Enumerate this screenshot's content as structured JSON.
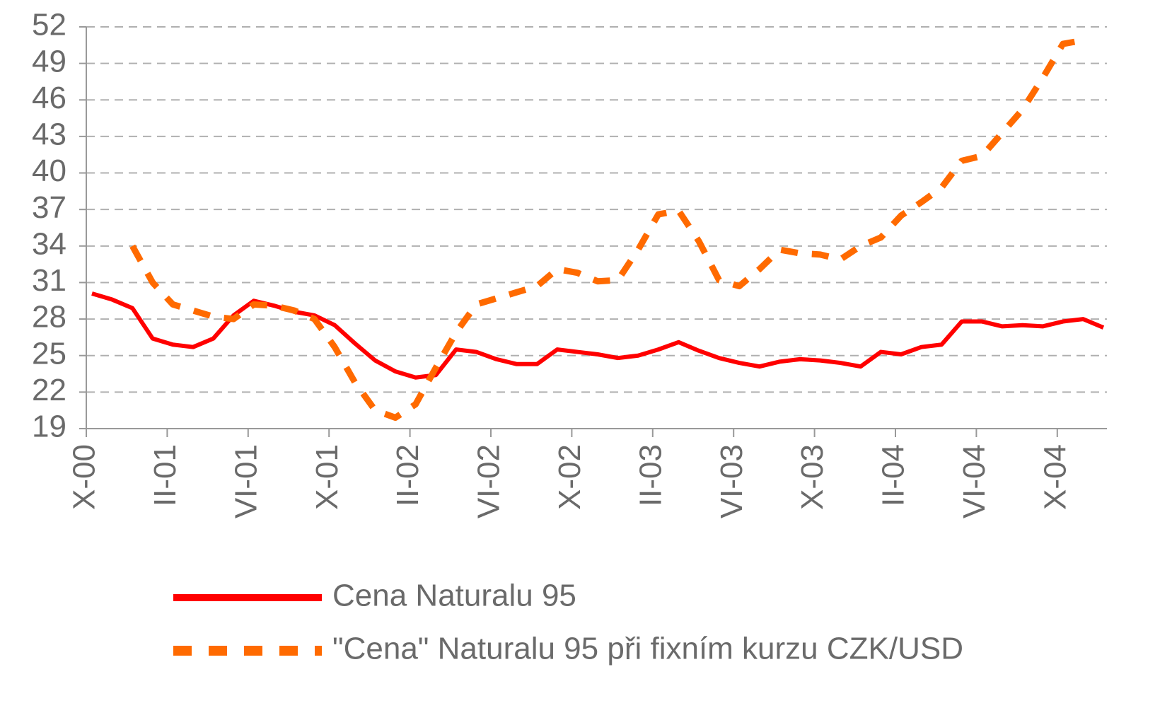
{
  "chart_data": {
    "type": "line",
    "categories": [
      "X-00",
      null,
      null,
      null,
      "II-01",
      null,
      null,
      null,
      "VI-01",
      null,
      null,
      null,
      "X-01",
      null,
      null,
      null,
      "II-02",
      null,
      null,
      null,
      "VI-02",
      null,
      null,
      null,
      "X-02",
      null,
      null,
      null,
      "II-03",
      null,
      null,
      null,
      "VI-03",
      null,
      null,
      null,
      "X-03",
      null,
      null,
      null,
      "II-04",
      null,
      null,
      null,
      "VI-04",
      null,
      null,
      null,
      "X-04",
      null,
      null
    ],
    "series": [
      {
        "name": "Cena Naturalu 95",
        "color": "#ff0000",
        "dashed": false,
        "values": [
          30.1,
          29.6,
          28.9,
          26.4,
          25.9,
          25.7,
          26.4,
          28.3,
          29.5,
          29.1,
          28.6,
          28.3,
          27.5,
          26.0,
          24.6,
          23.7,
          23.2,
          23.4,
          25.5,
          25.3,
          24.7,
          24.3,
          24.3,
          25.5,
          25.3,
          25.1,
          24.8,
          25.0,
          25.5,
          26.1,
          25.4,
          24.8,
          24.4,
          24.1,
          24.5,
          24.7,
          24.6,
          24.4,
          24.1,
          25.3,
          25.1,
          25.7,
          25.9,
          27.8,
          27.8,
          27.4,
          27.5,
          27.4,
          27.8,
          28.0,
          27.3
        ]
      },
      {
        "name": "\"Cena\" Naturalu 95 při fixním kurzu CZK/USD",
        "color": "#ff6a00",
        "dashed": true,
        "values": [
          null,
          null,
          34.0,
          31.0,
          29.2,
          28.7,
          28.2,
          28.0,
          29.2,
          29.1,
          28.7,
          28.0,
          25.7,
          22.8,
          20.5,
          19.9,
          21.0,
          24.0,
          26.9,
          29.2,
          29.7,
          30.2,
          30.7,
          32.1,
          31.8,
          31.1,
          31.2,
          33.7,
          36.6,
          36.9,
          34.4,
          31.2,
          30.7,
          32.1,
          33.7,
          33.4,
          33.3,
          32.9,
          34.0,
          34.7,
          36.5,
          37.6,
          38.8,
          41.0,
          41.4,
          43.3,
          45.2,
          47.8,
          50.6,
          50.9,
          null
        ]
      }
    ],
    "ylim": [
      19,
      52
    ],
    "yticks": [
      19,
      22,
      25,
      28,
      31,
      34,
      37,
      40,
      43,
      46,
      49,
      52
    ],
    "grid": true
  }
}
